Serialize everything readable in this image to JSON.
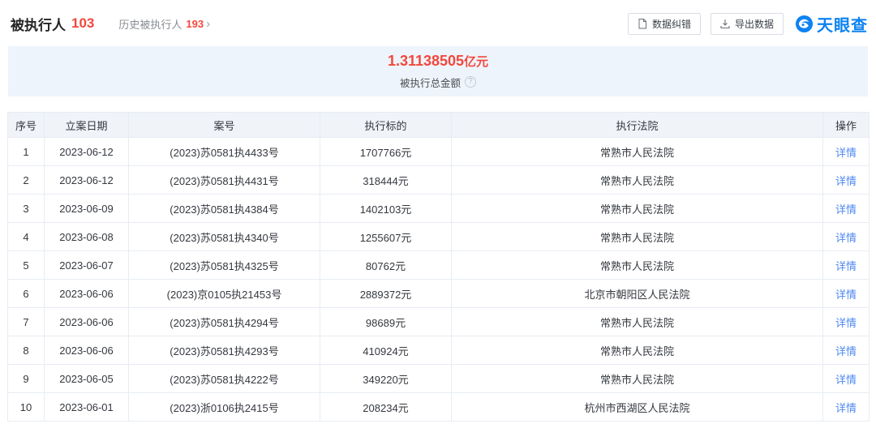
{
  "page": {
    "title": "被执行人",
    "title_count": "103",
    "history_label": "历史被执行人",
    "history_count": "193",
    "history_arrow": "›"
  },
  "toolbar": {
    "correction_label": "数据纠错",
    "export_label": "导出数据",
    "logo_text": "天眼查"
  },
  "summary": {
    "total_amount": "1.31138505",
    "total_amount_unit": "亿元",
    "total_label": "被执行总金额",
    "help_glyph": "?"
  },
  "colors": {
    "accent_red": "#f2483d",
    "link_blue": "#4d88f1",
    "logo_blue": "#0d83f2",
    "banner_bg": "#eef4fb",
    "table_header_bg": "#f0f4f9"
  },
  "table": {
    "columns": [
      "序号",
      "立案日期",
      "案号",
      "执行标的",
      "执行法院",
      "操作"
    ],
    "action_label": "详情",
    "rows": [
      {
        "seq": "1",
        "date": "2023-06-12",
        "case_no": "(2023)苏0581执4433号",
        "amount": "1707766元",
        "court": "常熟市人民法院"
      },
      {
        "seq": "2",
        "date": "2023-06-12",
        "case_no": "(2023)苏0581执4431号",
        "amount": "318444元",
        "court": "常熟市人民法院"
      },
      {
        "seq": "3",
        "date": "2023-06-09",
        "case_no": "(2023)苏0581执4384号",
        "amount": "1402103元",
        "court": "常熟市人民法院"
      },
      {
        "seq": "4",
        "date": "2023-06-08",
        "case_no": "(2023)苏0581执4340号",
        "amount": "1255607元",
        "court": "常熟市人民法院"
      },
      {
        "seq": "5",
        "date": "2023-06-07",
        "case_no": "(2023)苏0581执4325号",
        "amount": "80762元",
        "court": "常熟市人民法院"
      },
      {
        "seq": "6",
        "date": "2023-06-06",
        "case_no": "(2023)京0105执21453号",
        "amount": "2889372元",
        "court": "北京市朝阳区人民法院"
      },
      {
        "seq": "7",
        "date": "2023-06-06",
        "case_no": "(2023)苏0581执4294号",
        "amount": "98689元",
        "court": "常熟市人民法院"
      },
      {
        "seq": "8",
        "date": "2023-06-06",
        "case_no": "(2023)苏0581执4293号",
        "amount": "410924元",
        "court": "常熟市人民法院"
      },
      {
        "seq": "9",
        "date": "2023-06-05",
        "case_no": "(2023)苏0581执4222号",
        "amount": "349220元",
        "court": "常熟市人民法院"
      },
      {
        "seq": "10",
        "date": "2023-06-01",
        "case_no": "(2023)浙0106执2415号",
        "amount": "208234元",
        "court": "杭州市西湖区人民法院"
      }
    ]
  }
}
